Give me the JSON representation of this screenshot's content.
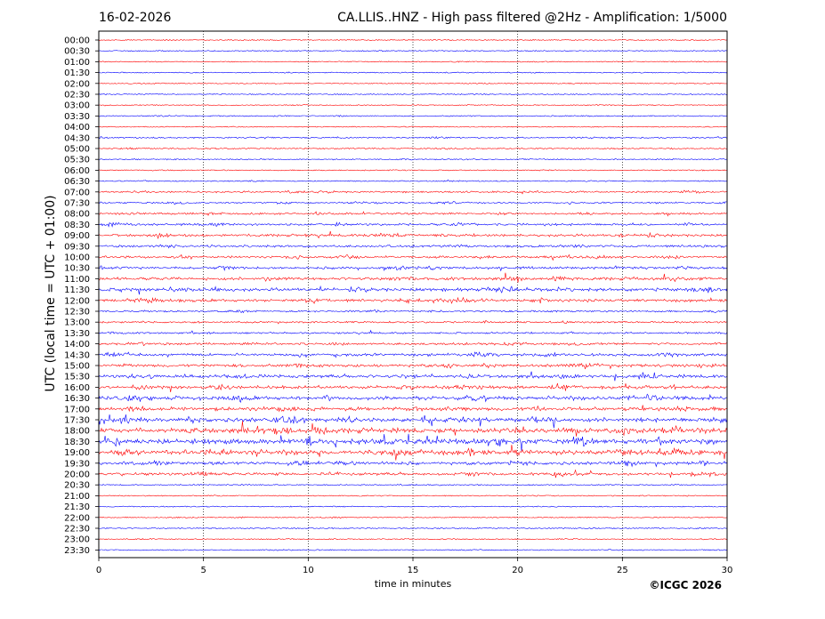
{
  "header": {
    "date": "16-02-2026",
    "title": "CA.LLIS..HNZ - High pass filtered @2Hz - Amplification: 1/5000"
  },
  "footer": {
    "copyright": "©ICGC 2026"
  },
  "chart_data": {
    "type": "line",
    "title": "CA.LLIS..HNZ - High pass filtered @2Hz - Amplification: 1/5000",
    "xlabel": "time in minutes",
    "ylabel": "UTC (local time = UTC + 01:00)",
    "xlim": [
      0,
      30
    ],
    "xticks": [
      0,
      5,
      10,
      15,
      20,
      25,
      30
    ],
    "grid": "vertical dotted lines at x ticks",
    "row_labels": [
      "00:00",
      "00:30",
      "01:00",
      "01:30",
      "02:00",
      "02:30",
      "03:00",
      "03:30",
      "04:00",
      "04:30",
      "05:00",
      "05:30",
      "06:00",
      "06:30",
      "07:00",
      "07:30",
      "08:00",
      "08:30",
      "09:00",
      "09:30",
      "10:00",
      "10:30",
      "11:00",
      "11:30",
      "12:00",
      "12:30",
      "13:00",
      "13:30",
      "14:00",
      "14:30",
      "15:00",
      "15:30",
      "16:00",
      "16:30",
      "17:00",
      "17:30",
      "18:00",
      "18:30",
      "19:00",
      "19:30",
      "20:00",
      "20:30",
      "21:00",
      "21:30",
      "22:00",
      "22:30",
      "23:00",
      "23:30"
    ],
    "row_colors": [
      "#ff0000",
      "#0000ff"
    ],
    "row_activity": [
      0.05,
      0.05,
      0.05,
      0.05,
      0.05,
      0.05,
      0.05,
      0.08,
      0.05,
      0.12,
      0.1,
      0.08,
      0.06,
      0.08,
      0.2,
      0.2,
      0.25,
      0.3,
      0.35,
      0.3,
      0.3,
      0.35,
      0.45,
      0.5,
      0.45,
      0.2,
      0.2,
      0.2,
      0.3,
      0.4,
      0.45,
      0.5,
      0.5,
      0.65,
      0.6,
      0.7,
      0.8,
      0.9,
      0.85,
      0.5,
      0.4,
      0.08,
      0.06,
      0.06,
      0.06,
      0.06,
      0.06,
      0.06
    ]
  }
}
